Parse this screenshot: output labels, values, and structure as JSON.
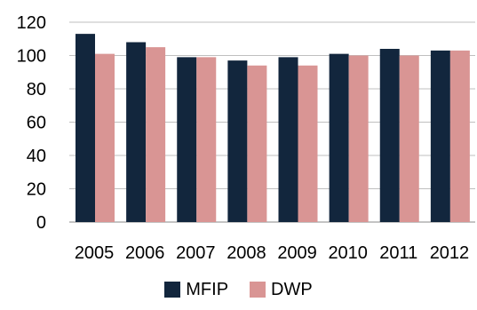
{
  "chart_data": {
    "type": "bar",
    "title": "",
    "xlabel": "",
    "ylabel": "",
    "categories": [
      "2005",
      "2006",
      "2007",
      "2008",
      "2009",
      "2010",
      "2011",
      "2012"
    ],
    "series": [
      {
        "name": "MFIP",
        "color": "#12263d",
        "values": [
          113,
          108,
          99,
          97,
          99,
          101,
          104,
          103
        ]
      },
      {
        "name": "DWP",
        "color": "#d99594",
        "values": [
          101,
          105,
          99,
          94,
          94,
          100,
          100,
          103
        ]
      }
    ],
    "ylim": [
      0,
      120
    ],
    "yticks": [
      "0",
      "20",
      "40",
      "60",
      "80",
      "100",
      "120"
    ],
    "grid": true,
    "legend_position": "bottom"
  }
}
